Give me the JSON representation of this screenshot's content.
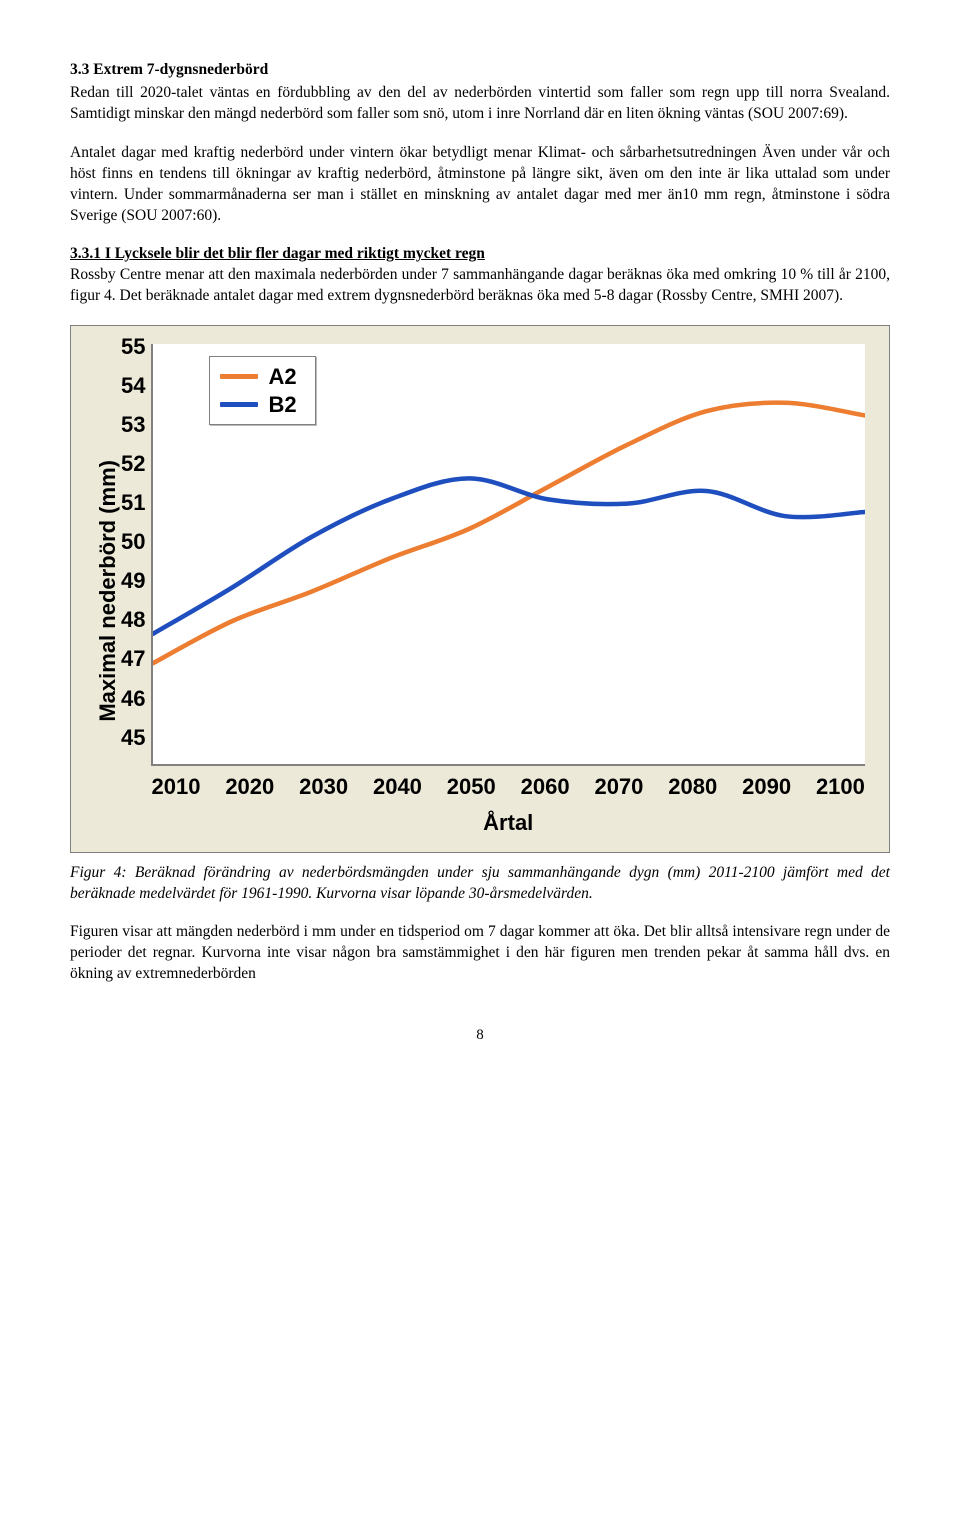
{
  "section": {
    "heading": "3.3 Extrem 7-dygnsnederbörd",
    "p1": "Redan till 2020-talet väntas en fördubbling av den del av nederbörden vintertid som faller som regn upp till norra Svealand. Samtidigt minskar den mängd nederbörd som faller som snö, utom i inre Norrland där en liten ökning väntas (SOU 2007:69).",
    "p2": "Antalet dagar med kraftig nederbörd under vintern ökar betydligt menar Klimat- och sårbarhetsutredningen Även under vår och höst finns en tendens till ökningar av kraftig nederbörd, åtminstone på längre sikt, även om den inte är lika uttalad som under vintern. Under sommarmånaderna ser man i stället en minskning av antalet dagar med mer än10 mm regn, åtminstone i södra Sverige (SOU 2007:60).",
    "subheading": "3.3.1 I Lycksele blir det blir fler dagar med riktigt mycket regn",
    "p3": "Rossby Centre menar att den maximala nederbörden under 7 sammanhängande dagar beräknas öka med omkring 10 % till år 2100, figur 4. Det beräknade antalet dagar med extrem dygnsnederbörd beräknas öka med 5-8 dagar (Rossby Centre, SMHI 2007)."
  },
  "chart": {
    "type": "line",
    "ylabel": "Maximal nederbörd (mm)",
    "xlabel": "Årtal",
    "ylim": [
      45,
      55
    ],
    "ytick_step": 1,
    "yticks": [
      "55",
      "54",
      "53",
      "52",
      "51",
      "50",
      "49",
      "48",
      "47",
      "46",
      "45"
    ],
    "xticks": [
      "2010",
      "2020",
      "2030",
      "2040",
      "2050",
      "2060",
      "2070",
      "2080",
      "2090",
      "2100"
    ],
    "background_color": "#ffffff",
    "panel_color": "#ece9d8",
    "axis_color": "#808080",
    "line_width": 4.5,
    "legend": {
      "position": "top-left-inside",
      "items": [
        {
          "label": "A2",
          "color": "#ed7d31"
        },
        {
          "label": "B2",
          "color": "#1f4ebf"
        }
      ]
    },
    "series": [
      {
        "name": "A2",
        "color": "#ed7d31",
        "x": [
          2010,
          2020,
          2030,
          2040,
          2050,
          2060,
          2070,
          2080,
          2090,
          2100
        ],
        "y": [
          47.4,
          48.4,
          49.1,
          49.9,
          50.6,
          51.6,
          52.6,
          53.4,
          53.6,
          53.3
        ]
      },
      {
        "name": "B2",
        "color": "#1f4ebf",
        "x": [
          2010,
          2020,
          2030,
          2040,
          2050,
          2060,
          2070,
          2080,
          2090,
          2100
        ],
        "y": [
          48.1,
          49.2,
          50.4,
          51.3,
          51.8,
          51.3,
          51.2,
          51.5,
          50.9,
          51.0
        ]
      }
    ]
  },
  "caption": "Figur 4: Beräknad förändring av nederbördsmängden under sju sammanhängande dygn (mm) 2011-2100 jämfört med det beräknade medelvärdet för 1961-1990. Kurvorna visar löpande 30-årsmedelvärden.",
  "p4": "Figuren visar att mängden nederbörd i mm under en tidsperiod om 7 dagar kommer att öka. Det blir alltså intensivare regn under de perioder det regnar. Kurvorna inte visar någon bra samstämmighet i den här figuren men trenden pekar åt samma håll dvs. en ökning av extremnederbörden",
  "pagenum": "8"
}
